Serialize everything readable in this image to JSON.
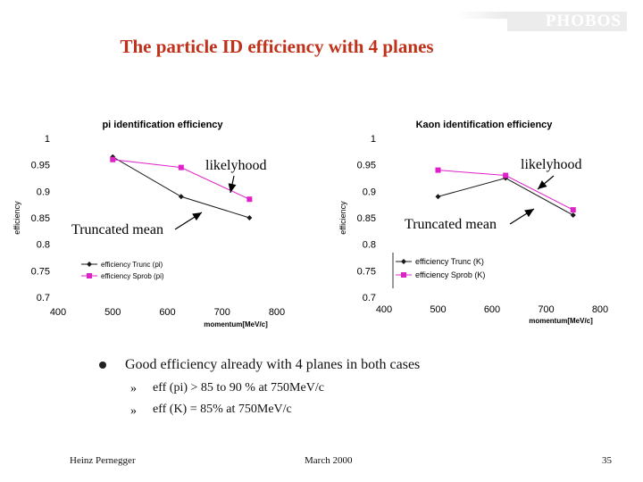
{
  "slide": {
    "title": "The particle ID efficiency with 4 planes",
    "logo": "PHOBOS",
    "bullets": {
      "main": "Good efficiency already with 4 planes in both cases",
      "subs": [
        "eff (pi) > 85 to 90 % at 750MeV/c",
        "eff (K) = 85% at 750MeV/c"
      ],
      "main_marker": "bullet-dot-icon",
      "sub_marker": "»"
    },
    "footer": {
      "author": "Heinz Pernegger",
      "date": "March 2000",
      "page": "35"
    }
  },
  "chart_data": [
    {
      "type": "line",
      "title": "pi identification efficiency",
      "xlabel": "momentum[MeV/c]",
      "ylabel": "efficiency",
      "xlim": [
        400,
        800
      ],
      "ylim": [
        0.7,
        1
      ],
      "xticks": [
        "400",
        "500",
        "600",
        "700",
        "800"
      ],
      "yticks": [
        "0.7",
        "0.75",
        "0.8",
        "0.85",
        "0.9",
        "0.95",
        "1"
      ],
      "legend": "bottom-left",
      "series": [
        {
          "name": "efficiency Trunc (pi)",
          "color": "#1a1a1a",
          "marker": "diamond",
          "x": [
            500,
            625,
            750
          ],
          "y": [
            0.965,
            0.89,
            0.85
          ]
        },
        {
          "name": "efficiency Sprob (pi)",
          "color": "#e020c8",
          "marker": "square",
          "x": [
            500,
            625,
            750
          ],
          "y": [
            0.96,
            0.945,
            0.885
          ]
        }
      ],
      "annotations": [
        "likelyhood",
        "Truncated mean"
      ]
    },
    {
      "type": "line",
      "title": "Kaon identification efficiency",
      "xlabel": "momentum[MeV/c]",
      "ylabel": "efficiency",
      "xlim": [
        400,
        800
      ],
      "ylim": [
        0.7,
        1
      ],
      "xticks": [
        "400",
        "500",
        "600",
        "700",
        "800"
      ],
      "yticks": [
        "0.7",
        "0.75",
        "0.8",
        "0.85",
        "0.9",
        "0.95",
        "1"
      ],
      "legend": "bottom-left",
      "series": [
        {
          "name": "efficiency Trunc (K)",
          "color": "#1a1a1a",
          "marker": "diamond",
          "x": [
            500,
            625,
            750
          ],
          "y": [
            0.89,
            0.925,
            0.855
          ]
        },
        {
          "name": "efficiency Sprob (K)",
          "color": "#e020c8",
          "marker": "square",
          "x": [
            500,
            625,
            750
          ],
          "y": [
            0.94,
            0.93,
            0.865
          ]
        }
      ],
      "annotations": [
        "likelyhood",
        "Truncated mean"
      ]
    }
  ]
}
